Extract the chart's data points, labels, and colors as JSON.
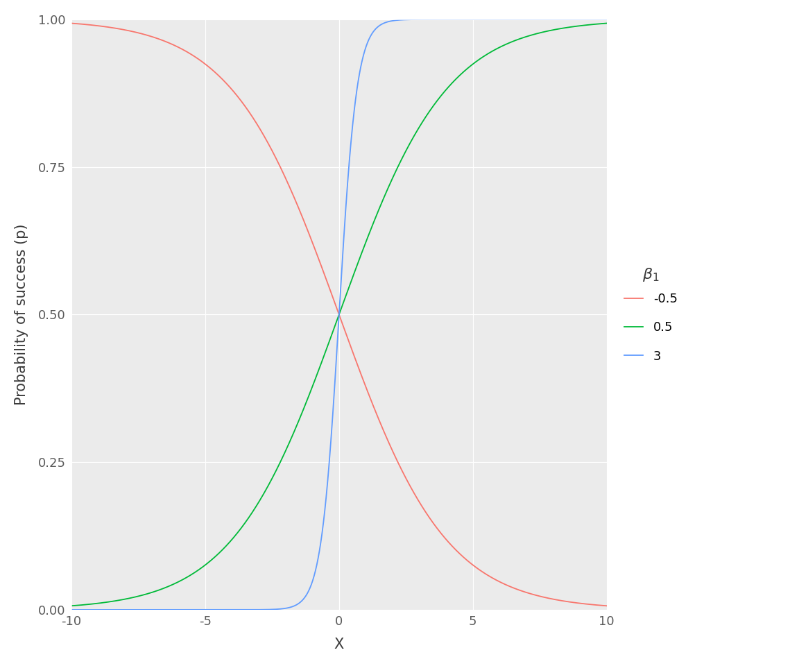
{
  "beta0": 0,
  "betas": [
    -0.5,
    0.5,
    3
  ],
  "beta_labels": [
    "-0.5",
    "0.5",
    "3"
  ],
  "colors": [
    "#F8766D",
    "#00BA38",
    "#619CFF"
  ],
  "x_min": -10,
  "x_max": 10,
  "y_min": 0,
  "y_max": 1.0,
  "xlabel": "X",
  "ylabel": "Probability of success (p)",
  "y_ticks": [
    0.0,
    0.25,
    0.5,
    0.75,
    1.0
  ],
  "x_ticks": [
    -10,
    -5,
    0,
    5,
    10
  ],
  "background_color": "#FFFFFF",
  "panel_background": "#EBEBEB",
  "grid_color": "#FFFFFF",
  "line_width": 1.3,
  "spine_color": "#FFFFFF",
  "tick_label_color": "#5A5A5A",
  "label_color": "#3A3A3A",
  "legend_title_fontsize": 16,
  "legend_label_fontsize": 13,
  "axis_label_fontsize": 15,
  "tick_label_fontsize": 13
}
